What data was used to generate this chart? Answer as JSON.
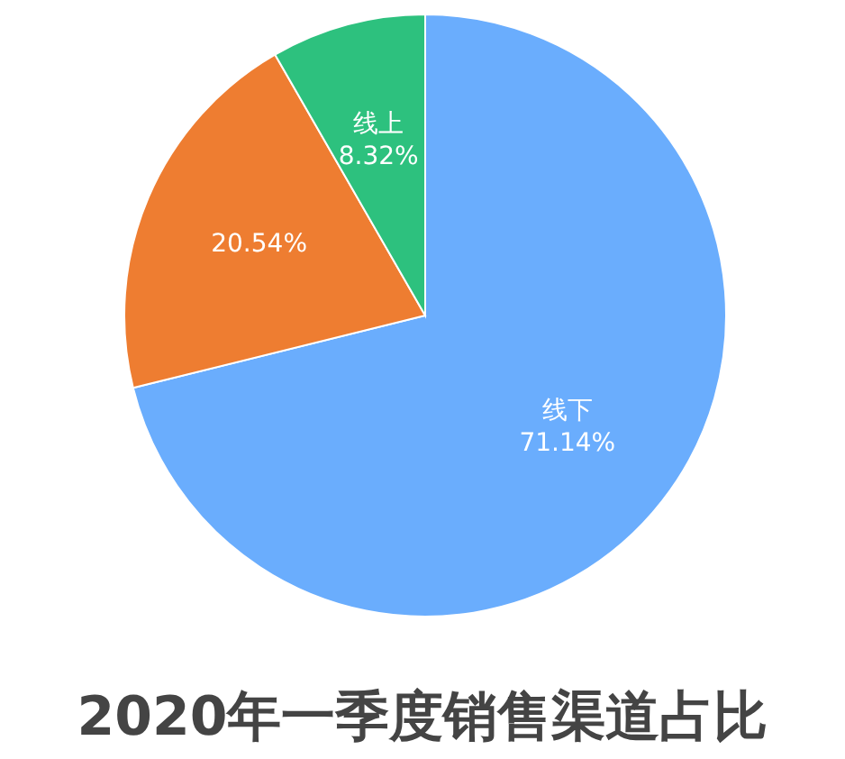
{
  "chart_data": {
    "type": "pie",
    "title": "2020年一季度销售渠道占比",
    "categories": [
      "线下",
      null,
      "线上"
    ],
    "values": [
      71.14,
      20.54,
      8.32
    ],
    "colors": [
      "#6aadfd",
      "#ee7d31",
      "#2dc17e"
    ],
    "value_labels": [
      "71.14%",
      "20.54%",
      "8.32%"
    ]
  }
}
